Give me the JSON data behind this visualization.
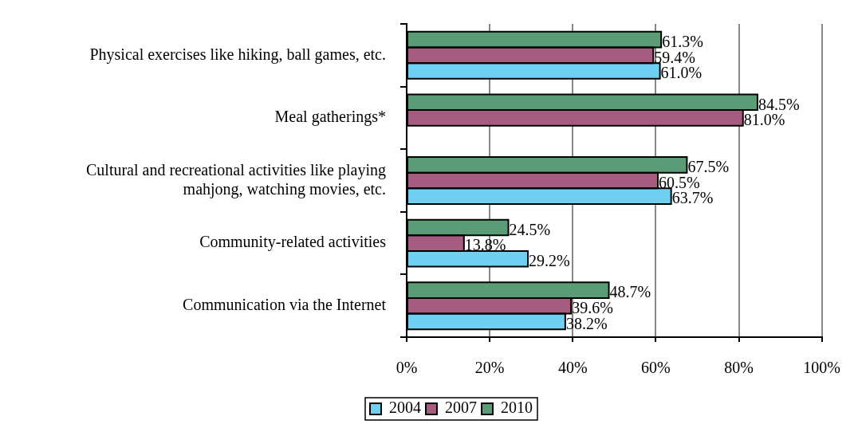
{
  "chart_data": {
    "type": "bar",
    "orientation": "horizontal",
    "categories": [
      "Physical exercises like hiking, ball games, etc.",
      "Meal gatherings*",
      "Cultural and recreational activities like playing mahjong, watching movies, etc.",
      "Community-related activities",
      "Communication via the Internet"
    ],
    "series": [
      {
        "name": "2004",
        "color": "#6fd0f2",
        "values": [
          61.0,
          null,
          63.7,
          29.2,
          38.2
        ],
        "value_labels": [
          "61.0%",
          null,
          "63.7%",
          "29.2%",
          "38.2%"
        ]
      },
      {
        "name": "2007",
        "color": "#a55c7e",
        "values": [
          59.4,
          81.0,
          60.5,
          13.8,
          39.6
        ],
        "value_labels": [
          "59.4%",
          "81.0%",
          "60.5%",
          "13.8%",
          "39.6%"
        ]
      },
      {
        "name": "2010",
        "color": "#5a9c76",
        "values": [
          61.3,
          84.5,
          67.5,
          24.5,
          48.7
        ],
        "value_labels": [
          "61.3%",
          "84.5%",
          "67.5%",
          "24.5%",
          "48.7%"
        ]
      }
    ],
    "xlim": [
      0,
      100
    ],
    "xticks": [
      {
        "value": 0,
        "label": "0%"
      },
      {
        "value": 20,
        "label": "20%"
      },
      {
        "value": 40,
        "label": "40%"
      },
      {
        "value": 60,
        "label": "60%"
      },
      {
        "value": 80,
        "label": "80%"
      },
      {
        "value": 100,
        "label": "100%"
      }
    ],
    "grid": "x",
    "legend": "bottom"
  }
}
